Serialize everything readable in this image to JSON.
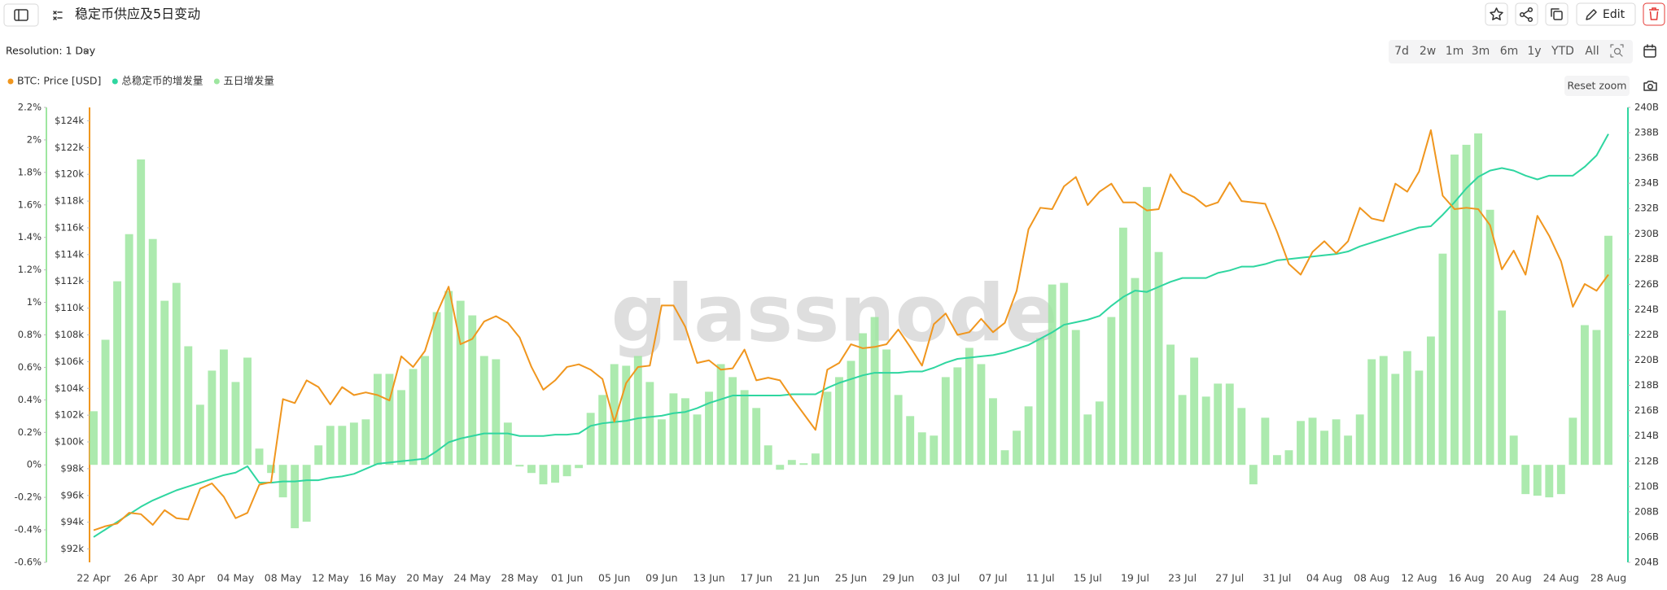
{
  "header": {
    "title": "稳定币供应及5日变动",
    "edit": "Edit"
  },
  "toolbar": {
    "resolution": "Resolution: 1 Day",
    "ranges": [
      "7d",
      "2w",
      "1m",
      "3m",
      "6m",
      "1y",
      "YTD",
      "All"
    ],
    "reset_zoom": "Reset zoom"
  },
  "chart_data": {
    "type": "combo",
    "watermark": "glassnode",
    "categories": [
      "22 Apr",
      null,
      null,
      null,
      "26 Apr",
      null,
      null,
      null,
      "30 Apr",
      null,
      null,
      null,
      "04 May",
      null,
      null,
      null,
      "08 May",
      null,
      null,
      null,
      "12 May",
      null,
      null,
      null,
      "16 May",
      null,
      null,
      null,
      "20 May",
      null,
      null,
      null,
      "24 May",
      null,
      null,
      null,
      "28 May",
      null,
      null,
      null,
      "01 Jun",
      null,
      null,
      null,
      "05 Jun",
      null,
      null,
      null,
      "09 Jun",
      null,
      null,
      null,
      "13 Jun",
      null,
      null,
      null,
      "17 Jun",
      null,
      null,
      null,
      "21 Jun",
      null,
      null,
      null,
      "25 Jun",
      null,
      null,
      null,
      "29 Jun",
      null,
      null,
      null,
      "03 Jul",
      null,
      null,
      null,
      "07 Jul",
      null,
      null,
      null,
      "11 Jul",
      null,
      null,
      null,
      "15 Jul",
      null,
      null,
      null,
      "19 Jul",
      null,
      null,
      null,
      "23 Jul",
      null,
      null,
      null,
      "27 Jul",
      null,
      null,
      null,
      "31 Jul",
      null,
      null,
      null,
      "04 Aug",
      null,
      null,
      null,
      "08 Aug",
      null,
      null,
      null,
      "12 Aug",
      null,
      null,
      null,
      "16 Aug",
      null,
      null,
      null,
      "20 Aug",
      null,
      null,
      null,
      "24 Aug",
      null,
      null,
      null,
      "28 Aug"
    ],
    "ylim": [
      -0.6,
      2.2
    ],
    "yticks": [
      {
        "value": 2.2,
        "label": "2.2%"
      },
      {
        "value": 2,
        "label": "2%"
      },
      {
        "value": 1.8,
        "label": "1.8%"
      },
      {
        "value": 1.6,
        "label": "1.6%"
      },
      {
        "value": 1.4,
        "label": "1.4%"
      },
      {
        "value": 1.2,
        "label": "1.2%"
      },
      {
        "value": 1,
        "label": "1%"
      },
      {
        "value": 0.8,
        "label": "0.8%"
      },
      {
        "value": 0.6,
        "label": "0.6%"
      },
      {
        "value": 0.4,
        "label": "0.4%"
      },
      {
        "value": 0.2,
        "label": "0.2%"
      },
      {
        "value": 0,
        "label": "0%"
      },
      {
        "value": -0.2,
        "label": "-0.2%"
      },
      {
        "value": -0.4,
        "label": "-0.4%"
      },
      {
        "value": -0.6,
        "label": "-0.6%"
      }
    ],
    "y3lim": [
      91,
      125
    ],
    "y3ticks": [
      {
        "value": 124,
        "label": "$124k"
      },
      {
        "value": 122,
        "label": "$122k"
      },
      {
        "value": 120,
        "label": "$120k"
      },
      {
        "value": 118,
        "label": "$118k"
      },
      {
        "value": 116,
        "label": "$116k"
      },
      {
        "value": 114,
        "label": "$114k"
      },
      {
        "value": 112,
        "label": "$112k"
      },
      {
        "value": 110,
        "label": "$110k"
      },
      {
        "value": 108,
        "label": "$108k"
      },
      {
        "value": 106,
        "label": "$106k"
      },
      {
        "value": 104,
        "label": "$104k"
      },
      {
        "value": 102,
        "label": "$102k"
      },
      {
        "value": 100,
        "label": "$100k"
      },
      {
        "value": 98,
        "label": "$98k"
      },
      {
        "value": 96,
        "label": "$96k"
      },
      {
        "value": 94,
        "label": "$94k"
      },
      {
        "value": 92,
        "label": "$92k"
      }
    ],
    "y2lim": [
      204,
      240
    ],
    "y2ticks": [
      {
        "value": 240,
        "label": "240B"
      },
      {
        "value": 238,
        "label": "238B"
      },
      {
        "value": 236,
        "label": "236B"
      },
      {
        "value": 234,
        "label": "234B"
      },
      {
        "value": 232,
        "label": "232B"
      },
      {
        "value": 230,
        "label": "230B"
      },
      {
        "value": 228,
        "label": "228B"
      },
      {
        "value": 226,
        "label": "226B"
      },
      {
        "value": 224,
        "label": "224B"
      },
      {
        "value": 222,
        "label": "222B"
      },
      {
        "value": 220,
        "label": "220B"
      },
      {
        "value": 218,
        "label": "218B"
      },
      {
        "value": 216,
        "label": "216B"
      },
      {
        "value": 214,
        "label": "214B"
      },
      {
        "value": 212,
        "label": "212B"
      },
      {
        "value": 210,
        "label": "210B"
      },
      {
        "value": 208,
        "label": "208B"
      },
      {
        "value": 206,
        "label": "206B"
      },
      {
        "value": 204,
        "label": "204B"
      }
    ],
    "series": [
      {
        "name": "BTC: Price [USD]",
        "type": "line",
        "axis": "y3",
        "color": "#f0961e",
        "values": [
          93.4,
          93.7,
          93.9,
          94.7,
          94.6,
          93.8,
          94.9,
          94.3,
          94.2,
          96.5,
          96.9,
          95.9,
          94.3,
          94.7,
          96.8,
          97.0,
          103.2,
          102.9,
          104.6,
          104.1,
          102.8,
          104.1,
          103.5,
          103.7,
          103.5,
          103.1,
          106.4,
          105.6,
          106.8,
          109.6,
          111.6,
          107.3,
          107.7,
          109.0,
          109.4,
          108.9,
          107.8,
          105.6,
          103.9,
          104.6,
          105.6,
          105.8,
          105.4,
          104.7,
          101.5,
          104.4,
          105.6,
          105.7,
          110.2,
          110.2,
          108.6,
          105.9,
          106.1,
          105.4,
          105.5,
          106.9,
          104.6,
          104.8,
          104.6,
          103.3,
          102.1,
          100.9,
          105.4,
          105.9,
          107.3,
          107.0,
          107.1,
          107.3,
          108.4,
          107.1,
          105.7,
          108.8,
          109.6,
          108.0,
          108.2,
          109.2,
          108.2,
          108.9,
          111.3,
          115.9,
          117.5,
          117.4,
          119.1,
          119.8,
          117.7,
          118.7,
          119.3,
          117.9,
          117.9,
          117.3,
          117.4,
          120.0,
          118.7,
          118.3,
          117.6,
          117.9,
          119.4,
          118.0,
          117.9,
          117.8,
          115.7,
          113.3,
          112.5,
          114.2,
          115.0,
          114.1,
          115.0,
          117.5,
          116.7,
          116.5,
          119.3,
          118.7,
          120.2,
          123.3,
          118.4,
          117.4,
          117.5,
          117.4,
          116.2,
          112.9,
          114.3,
          112.5,
          116.9,
          115.4,
          113.5,
          110.1,
          111.8,
          111.3,
          112.5
        ]
      },
      {
        "name": "总稳定币的增发量",
        "type": "line",
        "axis": "y2",
        "color": "#2fd6a0",
        "values": [
          206.0,
          206.6,
          207.2,
          207.8,
          208.4,
          208.9,
          209.3,
          209.7,
          210.0,
          210.3,
          210.6,
          210.9,
          211.1,
          211.6,
          210.3,
          210.3,
          210.4,
          210.4,
          210.5,
          210.5,
          210.7,
          210.8,
          211.0,
          211.4,
          211.8,
          211.9,
          212.0,
          212.1,
          212.2,
          212.8,
          213.5,
          213.8,
          214.0,
          214.2,
          214.2,
          214.2,
          214.0,
          214.0,
          214.0,
          214.1,
          214.1,
          214.2,
          214.8,
          215.0,
          215.1,
          215.2,
          215.4,
          215.5,
          215.6,
          215.8,
          215.9,
          216.2,
          216.6,
          216.9,
          217.2,
          217.2,
          217.2,
          217.2,
          217.2,
          217.3,
          217.3,
          217.3,
          217.8,
          218.2,
          218.5,
          218.8,
          219.0,
          219.0,
          219.0,
          219.1,
          219.1,
          219.4,
          219.8,
          220.1,
          220.2,
          220.3,
          220.4,
          220.6,
          220.9,
          221.2,
          221.7,
          222.2,
          222.8,
          223.0,
          223.2,
          223.5,
          224.3,
          225.0,
          225.5,
          225.4,
          225.8,
          226.2,
          226.5,
          226.5,
          226.5,
          226.9,
          227.1,
          227.4,
          227.4,
          227.6,
          227.9,
          228.0,
          228.1,
          228.2,
          228.3,
          228.4,
          228.6,
          229.0,
          229.3,
          229.6,
          229.9,
          230.2,
          230.5,
          230.6,
          231.5,
          232.5,
          233.6,
          234.5,
          235.0,
          235.2,
          235.0,
          234.6,
          234.3,
          234.6,
          234.6,
          234.6,
          235.3,
          236.2,
          237.9
        ]
      },
      {
        "name": "五日增发量",
        "type": "bar",
        "axis": "y",
        "color": "#9ee6a0",
        "values": [
          0.33,
          0.77,
          1.13,
          1.42,
          1.88,
          1.39,
          1.01,
          1.12,
          0.73,
          0.37,
          0.58,
          0.71,
          0.51,
          0.66,
          0.1,
          -0.05,
          -0.2,
          -0.39,
          -0.35,
          0.12,
          0.24,
          0.24,
          0.26,
          0.28,
          0.56,
          0.56,
          0.46,
          0.59,
          0.67,
          0.94,
          1.07,
          1.01,
          0.92,
          0.67,
          0.65,
          0.26,
          -0.01,
          -0.05,
          -0.12,
          -0.11,
          -0.07,
          -0.02,
          0.32,
          0.43,
          0.62,
          0.61,
          0.67,
          0.51,
          0.28,
          0.44,
          0.41,
          0.31,
          0.45,
          0.62,
          0.54,
          0.46,
          0.35,
          0.12,
          -0.03,
          0.03,
          0.01,
          0.07,
          0.45,
          0.54,
          0.64,
          0.81,
          0.91,
          0.71,
          0.43,
          0.3,
          0.2,
          0.18,
          0.54,
          0.6,
          0.72,
          0.62,
          0.41,
          0.09,
          0.21,
          0.36,
          0.78,
          1.11,
          1.12,
          0.83,
          0.31,
          0.39,
          0.91,
          1.46,
          1.15,
          1.71,
          1.31,
          0.74,
          0.43,
          0.66,
          0.42,
          0.5,
          0.5,
          0.35,
          -0.12,
          0.29,
          0.06,
          0.09,
          0.27,
          0.29,
          0.21,
          0.28,
          0.18,
          0.31,
          0.65,
          0.67,
          0.56,
          0.7,
          0.58,
          0.79,
          1.3,
          1.91,
          1.97,
          2.04,
          1.57,
          0.95,
          0.18,
          -0.18,
          -0.19,
          -0.2,
          -0.18,
          0.29,
          0.86,
          0.83,
          1.41
        ]
      }
    ]
  }
}
